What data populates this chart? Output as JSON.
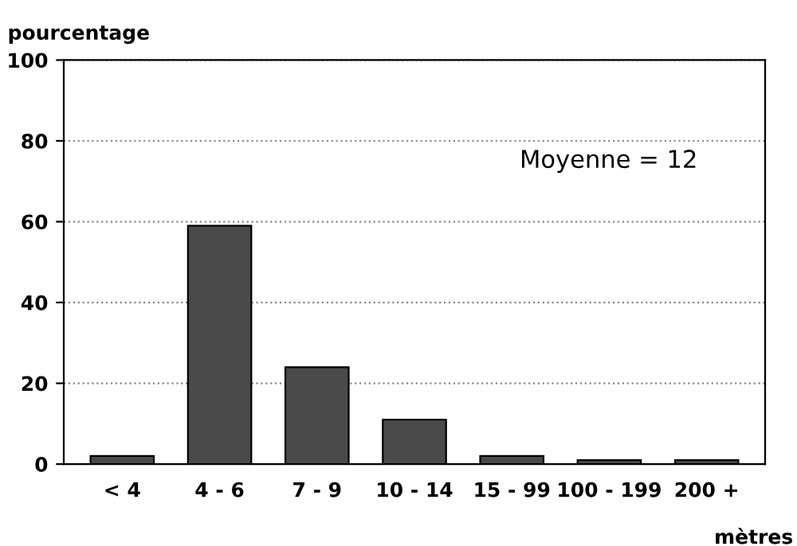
{
  "chart_data": {
    "type": "bar",
    "ylabel": "pourcentage",
    "xlabel": "mètres",
    "categories": [
      "< 4",
      "4 - 6",
      "7 - 9",
      "10 - 14",
      "15 - 99",
      "100 - 199",
      "200 +"
    ],
    "values": [
      2,
      59,
      24,
      11,
      2,
      1,
      1
    ],
    "color": "#4a4a4a",
    "ylim": [
      0,
      100
    ],
    "yticks": [
      0,
      20,
      40,
      60,
      80,
      100
    ],
    "grid": "y",
    "annotations": [
      "Moyenne = 12"
    ]
  }
}
